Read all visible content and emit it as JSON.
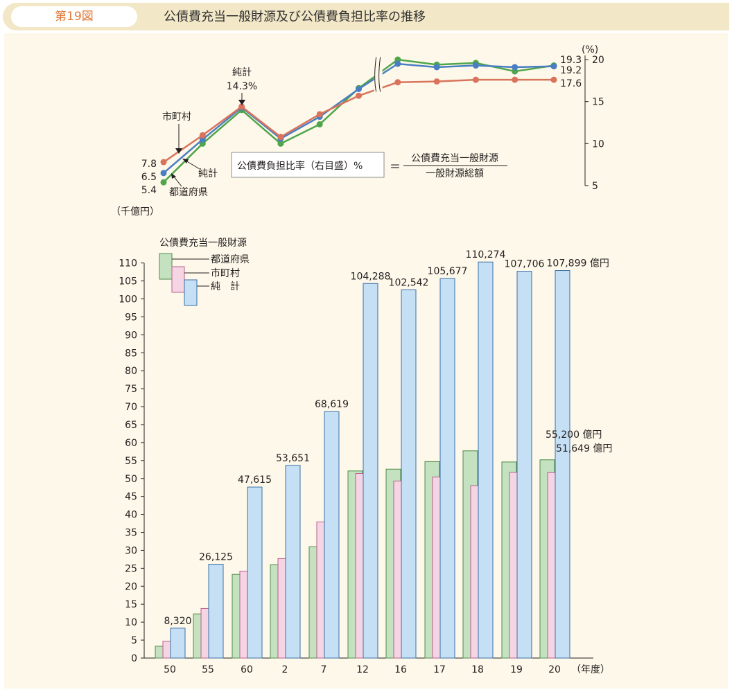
{
  "header": {
    "figure_no": "第19図",
    "title": "公債費充当一般財源及び公債費負担比率の推移"
  },
  "chart_data": [
    {
      "type": "line",
      "title": "公債費負担比率（右目盛）%",
      "formula_numerator": "公債費充当一般財源",
      "formula_denominator": "一般財源総額",
      "formula_equals": "＝",
      "ylabel": "(%)",
      "ylim": [
        5,
        20
      ],
      "y_ticks": [
        "5",
        "10",
        "15",
        "20"
      ],
      "axis_side": "right",
      "categories": [
        "50",
        "55",
        "60",
        "2",
        "7",
        "12",
        "16",
        "17",
        "18",
        "19",
        "20"
      ],
      "axis_break_between": [
        "12",
        "16"
      ],
      "series": [
        {
          "name": "市町村",
          "color": "#d9735b",
          "values": [
            7.8,
            11.0,
            14.4,
            10.8,
            13.5,
            15.7,
            17.3,
            17.4,
            17.6,
            17.6,
            17.6
          ]
        },
        {
          "name": "純計",
          "color": "#4a7ec2",
          "values": [
            6.5,
            10.5,
            14.3,
            10.6,
            13.2,
            16.5,
            19.5,
            19.1,
            19.3,
            19.1,
            19.2
          ]
        },
        {
          "name": "都道府県",
          "color": "#4fa54b",
          "values": [
            5.4,
            10.0,
            14.0,
            10.0,
            12.3,
            16.6,
            20.0,
            19.4,
            19.6,
            18.6,
            19.3
          ]
        }
      ],
      "annotations": {
        "start_labels": [
          "7.8",
          "6.5",
          "5.4"
        ],
        "end_labels": [
          "19.3",
          "19.2",
          "17.6"
        ],
        "series_labels": [
          "市町村",
          "純計",
          "都道府県"
        ],
        "peak_label_name": "純計",
        "peak_label_value": "14.3%"
      }
    },
    {
      "type": "bar",
      "ylabel": "（千億円）",
      "ylim": [
        0,
        110
      ],
      "y_ticks": [
        "0",
        "5",
        "10",
        "15",
        "20",
        "25",
        "30",
        "35",
        "40",
        "45",
        "50",
        "55",
        "60",
        "65",
        "70",
        "75",
        "80",
        "85",
        "90",
        "95",
        "100",
        "105",
        "110"
      ],
      "xlabel": "（年度）",
      "categories": [
        "50",
        "55",
        "60",
        "2",
        "7",
        "12",
        "16",
        "17",
        "18",
        "19",
        "20"
      ],
      "legend_title": "公債費充当一般財源",
      "series": [
        {
          "name": "都道府県",
          "color": "#c4e2c0",
          "values": [
            3.3,
            12.3,
            23.3,
            26.0,
            31.0,
            52.1,
            52.6,
            54.7,
            57.7,
            54.6,
            55.2
          ]
        },
        {
          "name": "市町村",
          "color": "#f5d5e4",
          "values": [
            4.7,
            13.8,
            24.2,
            27.7,
            37.9,
            51.4,
            49.3,
            50.4,
            48.0,
            51.7,
            51.649
          ]
        },
        {
          "name": "純　計",
          "color": "#c5dff5",
          "values": [
            8.32,
            26.125,
            47.615,
            53.651,
            68.619,
            104.288,
            102.542,
            105.677,
            110.274,
            107.706,
            107.899
          ]
        }
      ],
      "value_labels": [
        "8,320",
        "26,125",
        "47,615",
        "53,651",
        "68,619",
        "104,288",
        "102,542",
        "105,677",
        "110,274",
        "107,706",
        "107,899 億円"
      ],
      "last_group_labels": [
        "55,200 億円",
        "51,649 億円"
      ]
    }
  ]
}
